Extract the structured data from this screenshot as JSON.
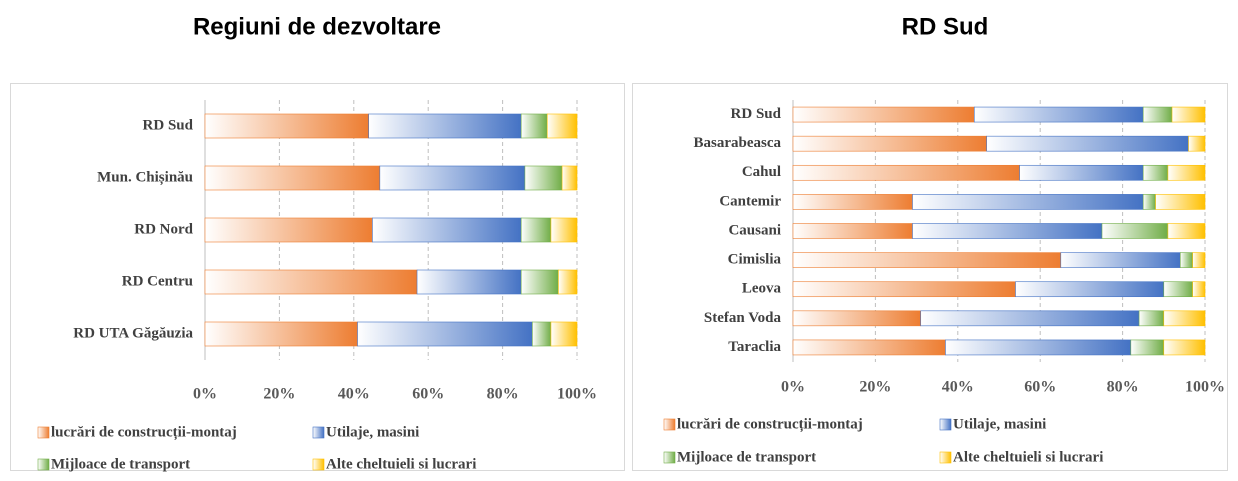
{
  "chart_data": [
    {
      "type": "bar",
      "orientation": "horizontal",
      "stacked": true,
      "title": "Regiuni de dezvoltare",
      "categories": [
        "RD Sud",
        "Mun. Chișinău",
        "RD Nord",
        "RD Centru",
        "RD UTA Găgăuzia"
      ],
      "series": [
        {
          "name": "lucrări de construcții-montaj",
          "color": "#ed7d31",
          "values": [
            44,
            47,
            45,
            57,
            41
          ]
        },
        {
          "name": "Utilaje, masini",
          "color": "#4472c4",
          "values": [
            41,
            39,
            40,
            28,
            47
          ]
        },
        {
          "name": "Mijloace de transport",
          "color": "#70ad47",
          "values": [
            7,
            10,
            8,
            10,
            5
          ]
        },
        {
          "name": "Alte cheltuieli si lucrari",
          "color": "#ffc000",
          "values": [
            8,
            4,
            7,
            5,
            7
          ]
        }
      ],
      "xlim": [
        0,
        100
      ],
      "xticks": [
        {
          "value": 0,
          "label": "0%"
        },
        {
          "value": 20,
          "label": "20%"
        },
        {
          "value": 40,
          "label": "40%"
        },
        {
          "value": 60,
          "label": "60%"
        },
        {
          "value": 80,
          "label": "80%"
        },
        {
          "value": 100,
          "label": "100%"
        }
      ],
      "grid": true
    },
    {
      "type": "bar",
      "orientation": "horizontal",
      "stacked": true,
      "title": "RD Sud",
      "categories": [
        "RD Sud",
        "Basarabeasca",
        "Cahul",
        "Cantemir",
        "Causani",
        "Cimislia",
        "Leova",
        "Stefan Voda",
        "Taraclia"
      ],
      "series": [
        {
          "name": "lucrări de construcții-montaj",
          "color": "#ed7d31",
          "values": [
            44,
            47,
            55,
            29,
            29,
            65,
            54,
            31,
            37
          ]
        },
        {
          "name": "Utilaje, masini",
          "color": "#4472c4",
          "values": [
            41,
            49,
            30,
            56,
            46,
            29,
            36,
            53,
            45
          ]
        },
        {
          "name": "Mijloace de transport",
          "color": "#70ad47",
          "values": [
            7,
            0,
            6,
            3,
            16,
            3,
            7,
            6,
            8
          ]
        },
        {
          "name": "Alte cheltuieli si lucrari",
          "color": "#ffc000",
          "values": [
            8,
            4,
            9,
            12,
            9,
            3,
            3,
            10,
            10
          ]
        }
      ],
      "xlim": [
        0,
        100
      ],
      "xticks": [
        {
          "value": 0,
          "label": "0%"
        },
        {
          "value": 20,
          "label": "20%"
        },
        {
          "value": 40,
          "label": "40%"
        },
        {
          "value": 60,
          "label": "60%"
        },
        {
          "value": 80,
          "label": "80%"
        },
        {
          "value": 100,
          "label": "100%"
        }
      ],
      "grid": true
    }
  ]
}
